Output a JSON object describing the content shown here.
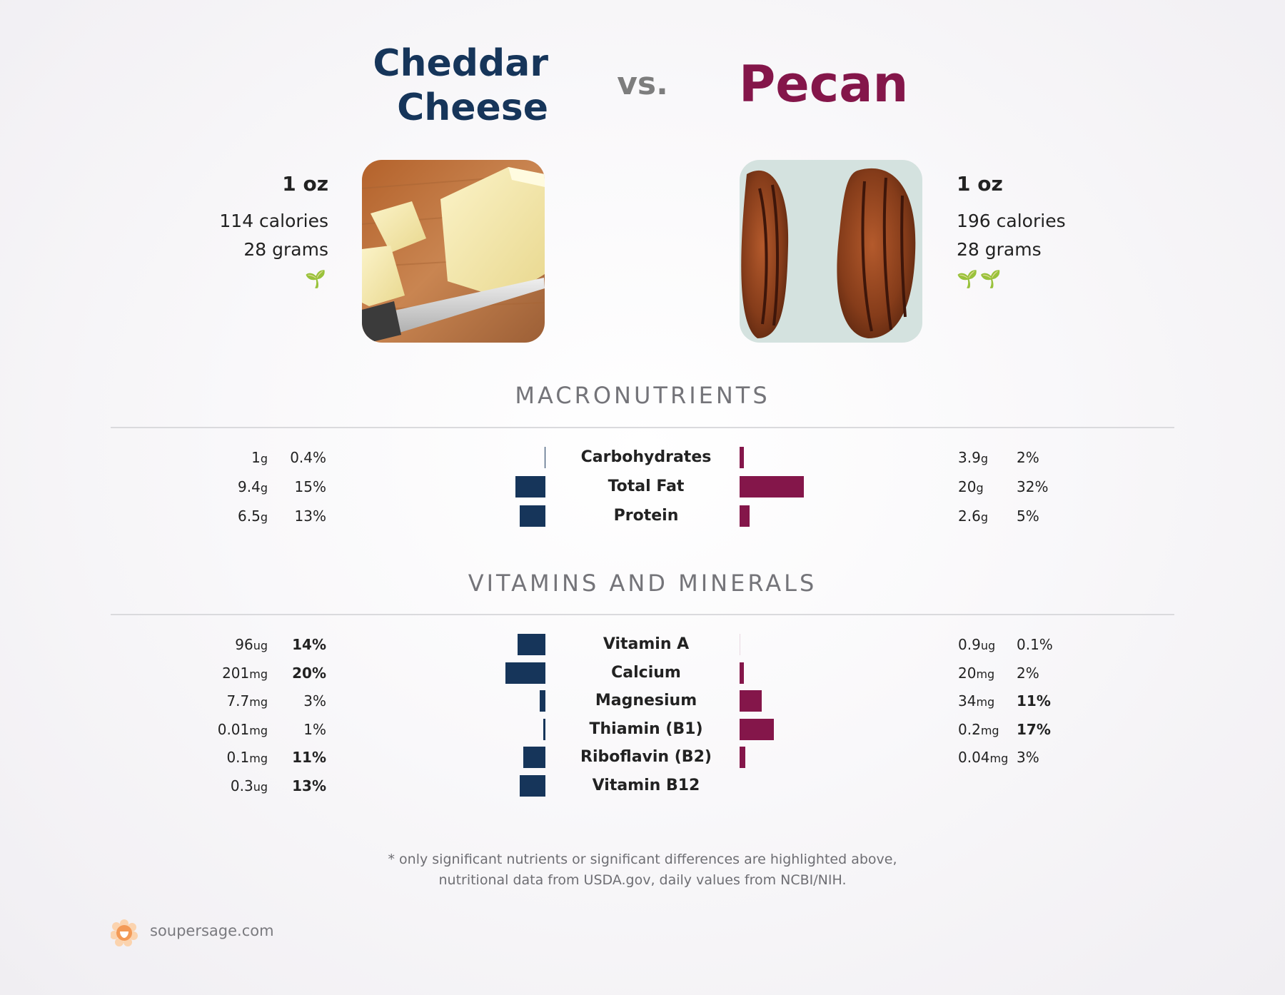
{
  "header": {
    "left_food_line1": "Cheddar",
    "left_food_line2": "Cheese",
    "vs_label": "vs.",
    "right_food": "Pecan"
  },
  "left_food": {
    "serving": "1 oz",
    "calories": "114 calories",
    "grams": "28 grams",
    "leaf_rating": 1,
    "leaves": "🌱",
    "image_icon": "cheddar-cheese-photo"
  },
  "right_food": {
    "serving": "1 oz",
    "calories": "196 calories",
    "grams": "28 grams",
    "leaf_rating": 2,
    "leaves": "🌱🌱",
    "image_icon": "pecan-photo"
  },
  "sections": {
    "macros_title": "MACRONUTRIENTS",
    "vitamins_title": "VITAMINS AND MINERALS"
  },
  "colors": {
    "left_accent": "#16355a",
    "right_accent": "#84164a",
    "leaf": "#1c7a1c",
    "brand": "#f4a76a"
  },
  "chart_data": {
    "type": "bar",
    "orientation": "horizontal-diverging",
    "series": [
      {
        "name": "Cheddar Cheese",
        "color": "#16355a"
      },
      {
        "name": "Pecan",
        "color": "#84164a"
      }
    ],
    "macronutrients": [
      {
        "name": "Carbohydrates",
        "left": {
          "amount": "1",
          "unit": "g",
          "pct": "0.4%",
          "value": 0.4,
          "bold": false
        },
        "right": {
          "amount": "3.9",
          "unit": "g",
          "pct": "2%",
          "value": 2,
          "bold": false
        }
      },
      {
        "name": "Total Fat",
        "left": {
          "amount": "9.4",
          "unit": "g",
          "pct": "15%",
          "value": 15,
          "bold": false
        },
        "right": {
          "amount": "20",
          "unit": "g",
          "pct": "32%",
          "value": 32,
          "bold": false
        }
      },
      {
        "name": "Protein",
        "left": {
          "amount": "6.5",
          "unit": "g",
          "pct": "13%",
          "value": 13,
          "bold": false
        },
        "right": {
          "amount": "2.6",
          "unit": "g",
          "pct": "5%",
          "value": 5,
          "bold": false
        }
      }
    ],
    "vitamins": [
      {
        "name": "Vitamin A",
        "left": {
          "amount": "96",
          "unit": "ug",
          "pct": "14%",
          "value": 14,
          "bold": true
        },
        "right": {
          "amount": "0.9",
          "unit": "ug",
          "pct": "0.1%",
          "value": 0.1,
          "bold": false
        }
      },
      {
        "name": "Calcium",
        "left": {
          "amount": "201",
          "unit": "mg",
          "pct": "20%",
          "value": 20,
          "bold": true
        },
        "right": {
          "amount": "20",
          "unit": "mg",
          "pct": "2%",
          "value": 2,
          "bold": false
        }
      },
      {
        "name": "Magnesium",
        "left": {
          "amount": "7.7",
          "unit": "mg",
          "pct": "3%",
          "value": 3,
          "bold": false
        },
        "right": {
          "amount": "34",
          "unit": "mg",
          "pct": "11%",
          "value": 11,
          "bold": true
        }
      },
      {
        "name": "Thiamin (B1)",
        "left": {
          "amount": "0.01",
          "unit": "mg",
          "pct": "1%",
          "value": 1,
          "bold": false
        },
        "right": {
          "amount": "0.2",
          "unit": "mg",
          "pct": "17%",
          "value": 17,
          "bold": true
        }
      },
      {
        "name": "Riboflavin (B2)",
        "left": {
          "amount": "0.1",
          "unit": "mg",
          "pct": "11%",
          "value": 11,
          "bold": true
        },
        "right": {
          "amount": "0.04",
          "unit": "mg",
          "pct": "3%",
          "value": 3,
          "bold": false
        }
      },
      {
        "name": "Vitamin B12",
        "left": {
          "amount": "0.3",
          "unit": "ug",
          "pct": "13%",
          "value": 13,
          "bold": true
        },
        "right": null
      }
    ]
  },
  "footnote": {
    "line1": "* only significant nutrients or significant differences are highlighted above,",
    "line2": "nutritional data from USDA.gov, daily values from NCBI/NIH."
  },
  "brand": {
    "site": "soupersage.com",
    "icon": "soupersage-logo-icon"
  }
}
